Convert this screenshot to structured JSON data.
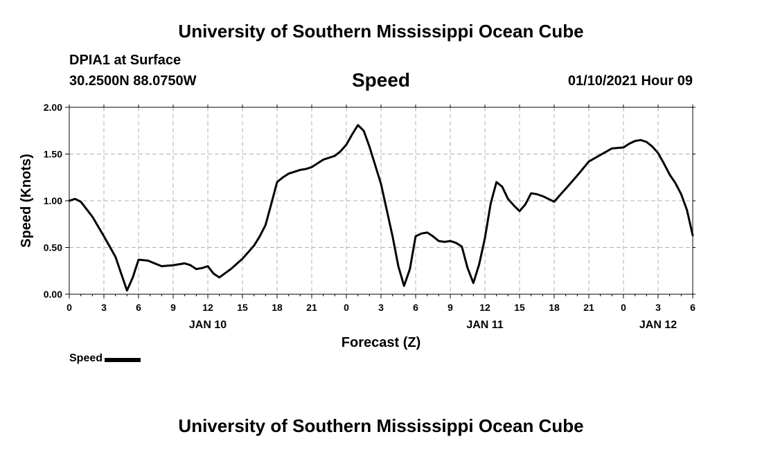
{
  "header": {
    "title": "University of Southern Mississippi Ocean Cube",
    "station": "DPIA1 at Surface",
    "coords": "30.2500N 88.0750W",
    "variable": "Speed",
    "datetime": "01/10/2021 Hour 09"
  },
  "footer": {
    "title": "University of Southern Mississippi Ocean Cube"
  },
  "legend": {
    "label": "Speed"
  },
  "chart_data": {
    "type": "line",
    "title": "Speed",
    "xlabel": "Forecast (Z)",
    "ylabel": "Speed (Knots)",
    "xlim": [
      0,
      54
    ],
    "ylim": [
      0,
      2
    ],
    "y_ticks": [
      "0.00",
      "0.50",
      "1.00",
      "1.50",
      "2.00"
    ],
    "y_tick_values": [
      0,
      0.5,
      1,
      1.5,
      2
    ],
    "x_tick_labels": [
      "0",
      "3",
      "6",
      "9",
      "12",
      "15",
      "18",
      "21",
      "0",
      "3",
      "6",
      "9",
      "12",
      "15",
      "18",
      "21",
      "0",
      "3",
      "6"
    ],
    "x_tick_values": [
      0,
      3,
      6,
      9,
      12,
      15,
      18,
      21,
      24,
      27,
      30,
      33,
      36,
      39,
      42,
      45,
      48,
      51,
      54
    ],
    "date_labels": [
      {
        "text": "JAN 10",
        "x": 12
      },
      {
        "text": "JAN 11",
        "x": 36
      },
      {
        "text": "JAN 12",
        "x": 51
      }
    ],
    "grid": true,
    "series": [
      {
        "name": "Speed",
        "color": "#000000",
        "points": [
          [
            0,
            1.0
          ],
          [
            0.5,
            1.02
          ],
          [
            1,
            0.99
          ],
          [
            2,
            0.83
          ],
          [
            3,
            0.62
          ],
          [
            4,
            0.4
          ],
          [
            5,
            0.04
          ],
          [
            5.5,
            0.18
          ],
          [
            6,
            0.37
          ],
          [
            6.8,
            0.36
          ],
          [
            7,
            0.35
          ],
          [
            8,
            0.3
          ],
          [
            9,
            0.31
          ],
          [
            10,
            0.33
          ],
          [
            10.5,
            0.31
          ],
          [
            11,
            0.27
          ],
          [
            11.5,
            0.28
          ],
          [
            12,
            0.3
          ],
          [
            12.5,
            0.22
          ],
          [
            13,
            0.18
          ],
          [
            14,
            0.27
          ],
          [
            15,
            0.38
          ],
          [
            16,
            0.52
          ],
          [
            16.5,
            0.62
          ],
          [
            17,
            0.74
          ],
          [
            17.5,
            0.97
          ],
          [
            18,
            1.2
          ],
          [
            18.5,
            1.25
          ],
          [
            19,
            1.29
          ],
          [
            20,
            1.33
          ],
          [
            20.5,
            1.34
          ],
          [
            21,
            1.36
          ],
          [
            22,
            1.44
          ],
          [
            23,
            1.48
          ],
          [
            23.5,
            1.53
          ],
          [
            24,
            1.6
          ],
          [
            24.5,
            1.71
          ],
          [
            25,
            1.81
          ],
          [
            25.5,
            1.75
          ],
          [
            26,
            1.58
          ],
          [
            27,
            1.18
          ],
          [
            28,
            0.62
          ],
          [
            28.5,
            0.3
          ],
          [
            29,
            0.09
          ],
          [
            29.5,
            0.27
          ],
          [
            30,
            0.62
          ],
          [
            30.5,
            0.65
          ],
          [
            31,
            0.66
          ],
          [
            31.5,
            0.62
          ],
          [
            32,
            0.57
          ],
          [
            32.5,
            0.56
          ],
          [
            33,
            0.57
          ],
          [
            33.5,
            0.55
          ],
          [
            34,
            0.51
          ],
          [
            34.5,
            0.28
          ],
          [
            35,
            0.12
          ],
          [
            35.5,
            0.32
          ],
          [
            36,
            0.6
          ],
          [
            36.5,
            0.97
          ],
          [
            37,
            1.2
          ],
          [
            37.5,
            1.15
          ],
          [
            38,
            1.02
          ],
          [
            38.5,
            0.95
          ],
          [
            39,
            0.89
          ],
          [
            39.5,
            0.96
          ],
          [
            40,
            1.08
          ],
          [
            40.5,
            1.07
          ],
          [
            41,
            1.05
          ],
          [
            41.5,
            1.02
          ],
          [
            42,
            0.99
          ],
          [
            42.5,
            1.06
          ],
          [
            43,
            1.13
          ],
          [
            44,
            1.27
          ],
          [
            45,
            1.42
          ],
          [
            46,
            1.49
          ],
          [
            47,
            1.56
          ],
          [
            48,
            1.57
          ],
          [
            48.5,
            1.61
          ],
          [
            49,
            1.64
          ],
          [
            49.5,
            1.65
          ],
          [
            50,
            1.63
          ],
          [
            50.5,
            1.58
          ],
          [
            51,
            1.51
          ],
          [
            51.5,
            1.4
          ],
          [
            52,
            1.28
          ],
          [
            52.5,
            1.19
          ],
          [
            53,
            1.07
          ],
          [
            53.5,
            0.9
          ],
          [
            54,
            0.63
          ]
        ]
      }
    ]
  }
}
